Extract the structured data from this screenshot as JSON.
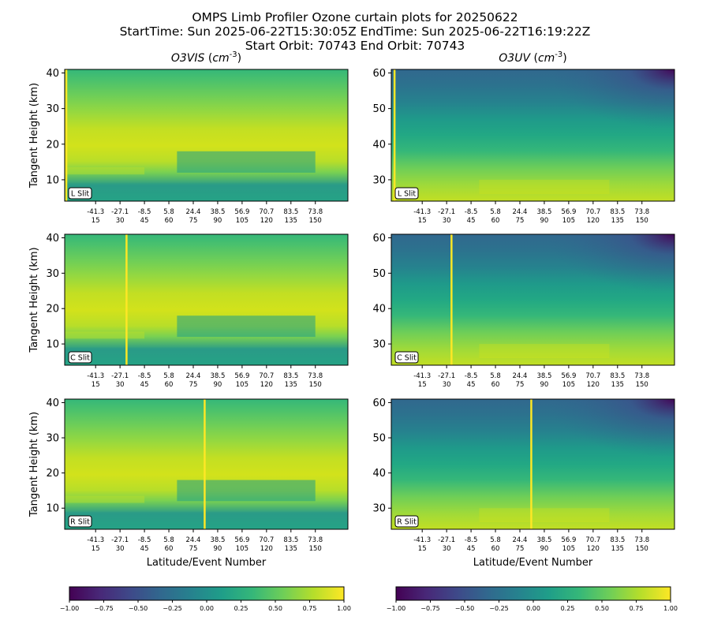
{
  "title": {
    "line1": "OMPS Limb Profiler Ozone curtain plots for 20250622",
    "line2": "StartTime: Sun 2025-06-22T15:30:05Z  EndTime: Sun 2025-06-22T16:19:22Z",
    "line3": "Start Orbit: 70743 End Orbit: 70743"
  },
  "colors": {
    "viridis": [
      "#440154",
      "#482878",
      "#3e4989",
      "#31688e",
      "#26828e",
      "#1f9e89",
      "#35b779",
      "#6ece58",
      "#b5de2b",
      "#fde725"
    ],
    "slit_line": "#fde725",
    "axis": "#000000"
  },
  "chart_data": [
    {
      "type": "heatmap",
      "column_title": "O3VIS",
      "column_title_unit": "cm",
      "column_title_exp": "-3",
      "slit_label": "L Slit",
      "ylabel": "Tangent Height (km)",
      "xlabel": "",
      "ylim": [
        4,
        41
      ],
      "yticks": [
        "10",
        "20",
        "30",
        "40"
      ],
      "ytick_values": [
        10,
        20,
        30,
        40
      ],
      "xlim": [
        -4,
        170
      ],
      "xticks_lat": [
        "-41.3",
        "-27.1",
        "-8.5",
        "5.8",
        "24.4",
        "38.5",
        "56.9",
        "70.7",
        "83.5",
        "73.8"
      ],
      "xticks_event": [
        "15",
        "30",
        "45",
        "60",
        "75",
        "90",
        "105",
        "120",
        "135",
        "150"
      ],
      "xtick_values": [
        15,
        30,
        45,
        60,
        75,
        90,
        105,
        120,
        135,
        150
      ],
      "slit_line_event": -3,
      "value_range": [
        -1,
        1
      ]
    },
    {
      "type": "heatmap",
      "column_title": "O3UV",
      "column_title_unit": "cm",
      "column_title_exp": "-3",
      "slit_label": "L Slit",
      "ylabel": "",
      "xlabel": "",
      "ylim": [
        24,
        61
      ],
      "yticks": [
        "30",
        "40",
        "50",
        "60"
      ],
      "ytick_values": [
        30,
        40,
        50,
        60
      ],
      "xlim": [
        -4,
        170
      ],
      "xticks_lat": [
        "-41.3",
        "-27.1",
        "-8.5",
        "5.8",
        "24.4",
        "38.5",
        "56.9",
        "70.7",
        "83.5",
        "73.8"
      ],
      "xticks_event": [
        "15",
        "30",
        "45",
        "60",
        "75",
        "90",
        "105",
        "120",
        "135",
        "150"
      ],
      "xtick_values": [
        15,
        30,
        45,
        60,
        75,
        90,
        105,
        120,
        135,
        150
      ],
      "slit_line_event": -2,
      "value_range": [
        -1,
        1
      ]
    },
    {
      "type": "heatmap",
      "column_title": "",
      "slit_label": "C Slit",
      "ylabel": "Tangent Height (km)",
      "xlabel": "",
      "ylim": [
        4,
        41
      ],
      "yticks": [
        "10",
        "20",
        "30",
        "40"
      ],
      "ytick_values": [
        10,
        20,
        30,
        40
      ],
      "xlim": [
        -4,
        170
      ],
      "xticks_lat": [
        "-41.3",
        "-27.1",
        "-8.5",
        "5.8",
        "24.4",
        "38.5",
        "56.9",
        "70.7",
        "83.5",
        "73.8"
      ],
      "xticks_event": [
        "15",
        "30",
        "45",
        "60",
        "75",
        "90",
        "105",
        "120",
        "135",
        "150"
      ],
      "xtick_values": [
        15,
        30,
        45,
        60,
        75,
        90,
        105,
        120,
        135,
        150
      ],
      "slit_line_event": 34,
      "value_range": [
        -1,
        1
      ]
    },
    {
      "type": "heatmap",
      "column_title": "",
      "slit_label": "C Slit",
      "ylabel": "",
      "xlabel": "",
      "ylim": [
        24,
        61
      ],
      "yticks": [
        "30",
        "40",
        "50",
        "60"
      ],
      "ytick_values": [
        30,
        40,
        50,
        60
      ],
      "xlim": [
        -4,
        170
      ],
      "xticks_lat": [
        "-41.3",
        "-27.1",
        "-8.5",
        "5.8",
        "24.4",
        "38.5",
        "56.9",
        "70.7",
        "83.5",
        "73.8"
      ],
      "xticks_event": [
        "15",
        "30",
        "45",
        "60",
        "75",
        "90",
        "105",
        "120",
        "135",
        "150"
      ],
      "xtick_values": [
        15,
        30,
        45,
        60,
        75,
        90,
        105,
        120,
        135,
        150
      ],
      "slit_line_event": 33,
      "value_range": [
        -1,
        1
      ]
    },
    {
      "type": "heatmap",
      "column_title": "",
      "slit_label": "R Slit",
      "ylabel": "Tangent Height (km)",
      "xlabel": "Latitude/Event Number",
      "ylim": [
        4,
        41
      ],
      "yticks": [
        "10",
        "20",
        "30",
        "40"
      ],
      "ytick_values": [
        10,
        20,
        30,
        40
      ],
      "xlim": [
        -4,
        170
      ],
      "xticks_lat": [
        "-41.3",
        "-27.1",
        "-8.5",
        "5.8",
        "24.4",
        "38.5",
        "56.9",
        "70.7",
        "83.5",
        "73.8"
      ],
      "xticks_event": [
        "15",
        "30",
        "45",
        "60",
        "75",
        "90",
        "105",
        "120",
        "135",
        "150"
      ],
      "xtick_values": [
        15,
        30,
        45,
        60,
        75,
        90,
        105,
        120,
        135,
        150
      ],
      "slit_line_event": 82,
      "value_range": [
        -1,
        1
      ]
    },
    {
      "type": "heatmap",
      "column_title": "",
      "slit_label": "R Slit",
      "ylabel": "",
      "xlabel": "Latitude/Event Number",
      "ylim": [
        24,
        61
      ],
      "yticks": [
        "30",
        "40",
        "50",
        "60"
      ],
      "ytick_values": [
        30,
        40,
        50,
        60
      ],
      "xlim": [
        -4,
        170
      ],
      "xticks_lat": [
        "-41.3",
        "-27.1",
        "-8.5",
        "5.8",
        "24.4",
        "38.5",
        "56.9",
        "70.7",
        "83.5",
        "73.8"
      ],
      "xticks_event": [
        "15",
        "30",
        "45",
        "60",
        "75",
        "90",
        "105",
        "120",
        "135",
        "150"
      ],
      "xtick_values": [
        15,
        30,
        45,
        60,
        75,
        90,
        105,
        120,
        135,
        150
      ],
      "slit_line_event": 82,
      "value_range": [
        -1,
        1
      ]
    }
  ],
  "colorbars": [
    {
      "ticks": [
        "−1.00",
        "−0.75",
        "−0.50",
        "−0.25",
        "0.00",
        "0.25",
        "0.50",
        "0.75",
        "1.00"
      ],
      "range": [
        -1,
        1
      ]
    },
    {
      "ticks": [
        "−1.00",
        "−0.75",
        "−0.50",
        "−0.25",
        "0.00",
        "0.25",
        "0.50",
        "0.75",
        "1.00"
      ],
      "range": [
        -1,
        1
      ]
    }
  ]
}
